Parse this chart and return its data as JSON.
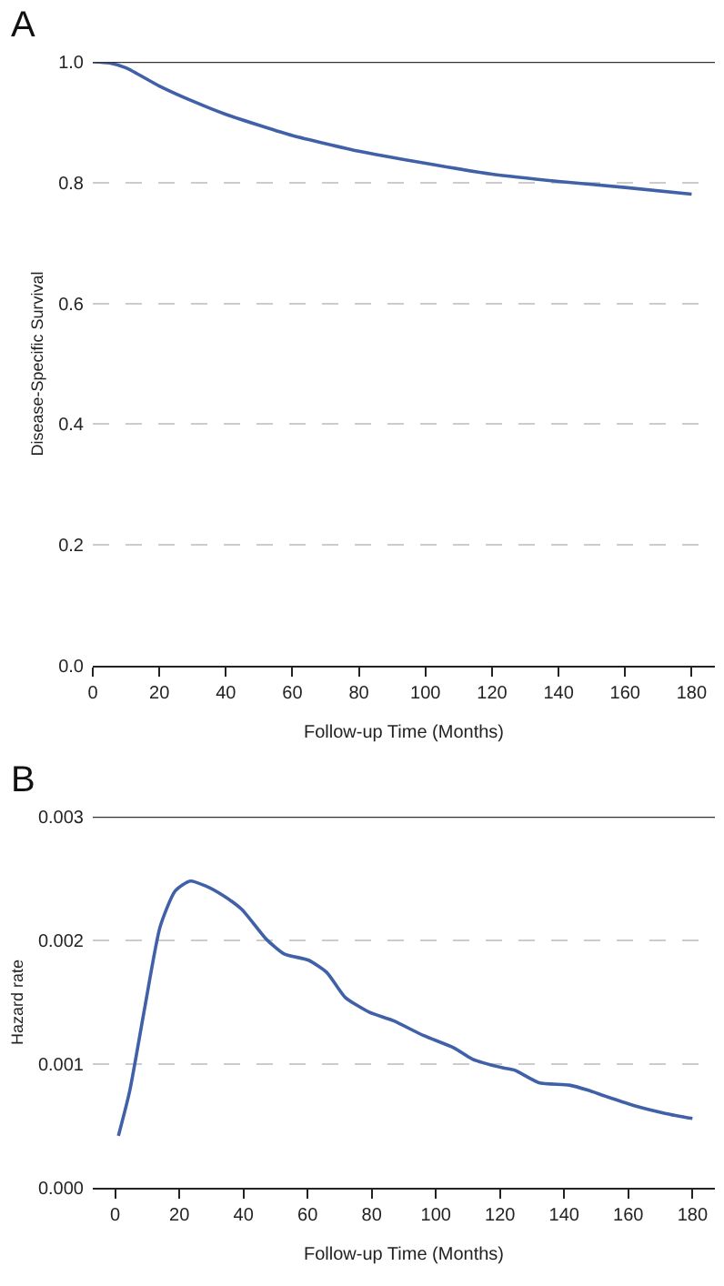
{
  "chart_data": [
    {
      "type": "line",
      "title": "A",
      "xlabel": "Follow-up Time (Months)",
      "ylabel": "Disease-Specific Survival",
      "x": [
        0,
        5,
        10,
        20,
        30,
        40,
        50,
        60,
        80,
        100,
        120,
        140,
        160,
        180
      ],
      "series": [
        {
          "color": "#4060a8",
          "values": [
            1.0,
            0.998,
            0.99,
            0.96,
            0.935,
            0.913,
            0.895,
            0.878,
            0.852,
            0.832,
            0.814,
            0.802,
            0.792,
            0.781
          ]
        }
      ],
      "xlim": [
        0,
        187
      ],
      "xticks": [
        0,
        20,
        40,
        60,
        80,
        100,
        120,
        140,
        160,
        180
      ],
      "ylim": [
        0,
        1.0
      ],
      "yticks": [
        {
          "value": 0,
          "label": "0.0"
        },
        {
          "value": 0.2,
          "label": "0.2"
        },
        {
          "value": 0.4,
          "label": "0.4"
        },
        {
          "value": 0.6,
          "label": "0.6"
        },
        {
          "value": 0.8,
          "label": "0.8"
        },
        {
          "value": 1,
          "label": "1.0"
        }
      ],
      "ref_lines": [
        {
          "axis": "y",
          "value": 1,
          "color": "#333333",
          "line_style": "solid"
        }
      ],
      "grid": "y",
      "marker": "none",
      "line_style": "solid"
    },
    {
      "type": "line",
      "title": "B",
      "xlabel": "Follow-up Time (Months)",
      "ylabel": "Hazard rate",
      "x": [
        1,
        4.5,
        9.3,
        14,
        18.7,
        23.4,
        28.2,
        33.8,
        39.5,
        47.1,
        52.7,
        60.3,
        66,
        71.7,
        79.2,
        86.8,
        96.2,
        105.7,
        111.4,
        120.8,
        124.6,
        132.1,
        141.6,
        147.3,
        152.9,
        162.4,
        171.8,
        180
      ],
      "series": [
        {
          "color": "#4060a8",
          "values": [
            0.00042,
            0.00078,
            0.00147,
            0.00211,
            0.0024,
            0.00248,
            0.00244,
            0.00236,
            0.00225,
            0.00201,
            0.00189,
            0.00184,
            0.00174,
            0.00154,
            0.00142,
            0.00135,
            0.00123,
            0.00113,
            0.00104,
            0.00097,
            0.00095,
            0.00085,
            0.00083,
            0.00079,
            0.00074,
            0.00066,
            0.0006,
            0.00056
          ]
        }
      ],
      "xlim": [
        -7,
        187
      ],
      "xticks": [
        0,
        20,
        40,
        60,
        80,
        100,
        120,
        140,
        160,
        180
      ],
      "ylim": [
        0,
        0.003
      ],
      "yticks": [
        {
          "value": 0,
          "label": "0.000"
        },
        {
          "value": 0.001,
          "label": "0.001"
        },
        {
          "value": 0.002,
          "label": "0.002"
        },
        {
          "value": 0.003,
          "label": "0.003"
        }
      ],
      "ref_lines": [
        {
          "axis": "y",
          "value": 0.003,
          "color": "#333333",
          "line_style": "solid"
        }
      ],
      "grid": "y",
      "marker": "none",
      "line_style": "solid"
    }
  ]
}
